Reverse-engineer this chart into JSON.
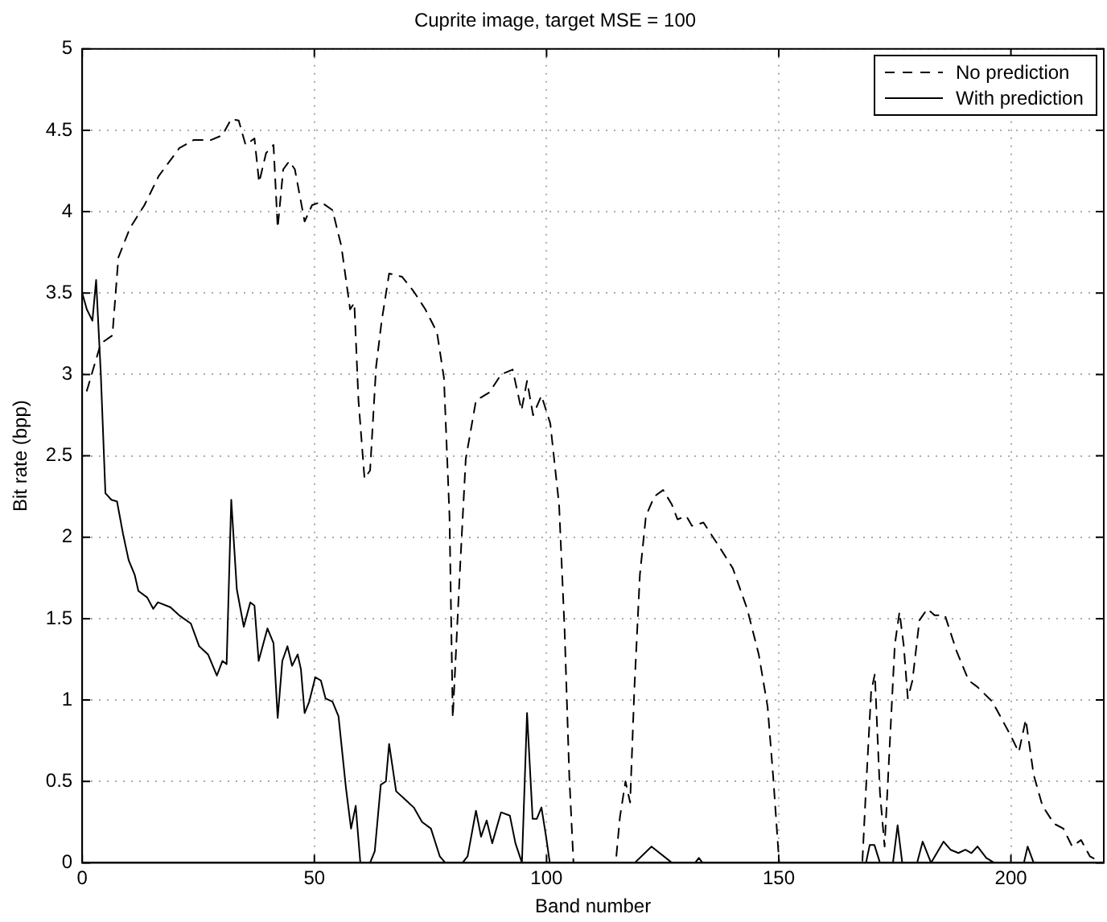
{
  "chart_data": {
    "type": "line",
    "title": "Cuprite image, target MSE = 100",
    "xlabel": "Band number",
    "ylabel": "Bit rate (bpp)",
    "xlim": [
      0,
      220
    ],
    "xticks": [
      0,
      50,
      100,
      150,
      200
    ],
    "ylim": [
      0,
      5
    ],
    "yticks": [
      0,
      0.5,
      1,
      1.5,
      2,
      2.5,
      3,
      3.5,
      4,
      4.5,
      5
    ],
    "grid": true,
    "legend": "top right",
    "marker": "none",
    "series": [
      {
        "name": "No prediction",
        "color": "#000000",
        "line_style": "dashed",
        "x": [
          1,
          4,
          6.5,
          7.8,
          10.3,
          13.4,
          16.5,
          20.9,
          24,
          27.7,
          30.2,
          32.1,
          33.7,
          35.2,
          37.1,
          38.1,
          39.6,
          41.2,
          42.1,
          43.3,
          44.6,
          45.8,
          47.9,
          49.5,
          51.4,
          53.9,
          55.8,
          57.7,
          58.6,
          59.5,
          60.8,
          62,
          63.3,
          64.5,
          66.1,
          68.9,
          71.4,
          73.9,
          76.4,
          77.9,
          79.1,
          79.8,
          81.3,
          82.6,
          84.8,
          87.7,
          90.2,
          92.7,
          94.6,
          95.8,
          97.1,
          98.9,
          100.8,
          102.7,
          103.9,
          104.9,
          105.8,
          114.9,
          115.8,
          117,
          118,
          118.9,
          120.1,
          121.4,
          123.2,
          125.1,
          127,
          128.2,
          130.1,
          131.3,
          133.8,
          137,
          140.1,
          143.2,
          145.7,
          147.6,
          148.8,
          150.1,
          168,
          168.8,
          169.9,
          170.7,
          171.8,
          172.8,
          173.7,
          175,
          176,
          176.9,
          177.8,
          178.8,
          180.3,
          182,
          183.6,
          185.8,
          188.3,
          190.9,
          192.8,
          196,
          199.8,
          201.7,
          203.2,
          204.9,
          206.8,
          209.3,
          211.3,
          213.2,
          215.1,
          217,
          219.5
        ],
        "values": [
          2.9,
          3.19,
          3.24,
          3.72,
          3.9,
          4.04,
          4.22,
          4.39,
          4.44,
          4.44,
          4.47,
          4.57,
          4.56,
          4.41,
          4.45,
          4.18,
          4.36,
          4.41,
          3.9,
          4.26,
          4.31,
          4.26,
          3.94,
          4.04,
          4.06,
          4.01,
          3.79,
          3.4,
          3.44,
          2.84,
          2.36,
          2.41,
          3.05,
          3.33,
          3.62,
          3.6,
          3.51,
          3.4,
          3.26,
          2.98,
          2.13,
          0.89,
          1.77,
          2.48,
          2.84,
          2.89,
          3.0,
          3.03,
          2.78,
          2.96,
          2.75,
          2.87,
          2.7,
          2.2,
          1.42,
          0.53,
          0,
          0,
          0.28,
          0.5,
          0.37,
          1.06,
          1.77,
          2.13,
          2.25,
          2.29,
          2.2,
          2.11,
          2.13,
          2.07,
          2.09,
          1.95,
          1.81,
          1.56,
          1.28,
          0.96,
          0.53,
          0,
          0,
          0.46,
          1.05,
          1.16,
          0.43,
          0.1,
          0.61,
          1.34,
          1.54,
          1.34,
          1.01,
          1.12,
          1.49,
          1.56,
          1.52,
          1.52,
          1.3,
          1.12,
          1.08,
          0.99,
          0.79,
          0.68,
          0.88,
          0.54,
          0.35,
          0.24,
          0.21,
          0.1,
          0.14,
          0.04,
          0
        ]
      },
      {
        "name": "With prediction",
        "color": "#000000",
        "line_style": "solid",
        "x": [
          0,
          1,
          2.2,
          3,
          4,
          5,
          6.3,
          7.5,
          8.8,
          10,
          11.3,
          12.1,
          14,
          15.3,
          16.3,
          19,
          20.9,
          23.4,
          25.2,
          27.1,
          29,
          30.2,
          31.1,
          32.1,
          33.3,
          34.8,
          36.2,
          37.1,
          38,
          39.9,
          41.2,
          42.1,
          43.1,
          44.2,
          45.2,
          46.4,
          47.1,
          47.9,
          48.9,
          50.2,
          51.4,
          52.4,
          53.9,
          55.2,
          56.8,
          57.9,
          58.9,
          59.9,
          62,
          63,
          64.3,
          65.4,
          66.1,
          67.6,
          69.5,
          71.4,
          73.2,
          75.1,
          77,
          78.2,
          81.9,
          83,
          84.8,
          85.9,
          87.1,
          88.3,
          90.2,
          92.1,
          93.3,
          94.7,
          95.8,
          97,
          97.9,
          98.9,
          99.9,
          100.7,
          119,
          122.6,
          127,
          132,
          132.8,
          133.6,
          168.8,
          169.6,
          170.6,
          171.8,
          174.6,
          175.6,
          176.6,
          179.8,
          181,
          182.8,
          185.5,
          187,
          188.7,
          190.2,
          191.5,
          192.8,
          194.7,
          196.4,
          202.8,
          203.6,
          204.9,
          220
        ],
        "values": [
          3.5,
          3.4,
          3.33,
          3.58,
          3.01,
          2.27,
          2.23,
          2.22,
          2.02,
          1.86,
          1.77,
          1.67,
          1.63,
          1.56,
          1.6,
          1.57,
          1.52,
          1.47,
          1.33,
          1.28,
          1.15,
          1.24,
          1.22,
          2.23,
          1.68,
          1.45,
          1.6,
          1.58,
          1.24,
          1.44,
          1.35,
          0.89,
          1.24,
          1.33,
          1.21,
          1.28,
          1.19,
          0.92,
          0.99,
          1.14,
          1.12,
          1.01,
          0.99,
          0.9,
          0.46,
          0.21,
          0.35,
          0,
          0,
          0.07,
          0.48,
          0.5,
          0.73,
          0.44,
          0.39,
          0.34,
          0.25,
          0.21,
          0.04,
          0,
          0,
          0.04,
          0.32,
          0.16,
          0.26,
          0.12,
          0.31,
          0.29,
          0.12,
          0,
          0.92,
          0.27,
          0.27,
          0.34,
          0.16,
          0,
          0,
          0.1,
          0,
          0,
          0.03,
          0,
          0,
          0.11,
          0.11,
          0,
          0,
          0.23,
          0,
          0,
          0.13,
          0,
          0.13,
          0.08,
          0.06,
          0.08,
          0.06,
          0.1,
          0.03,
          0,
          0,
          0.1,
          0,
          0
        ]
      }
    ]
  }
}
